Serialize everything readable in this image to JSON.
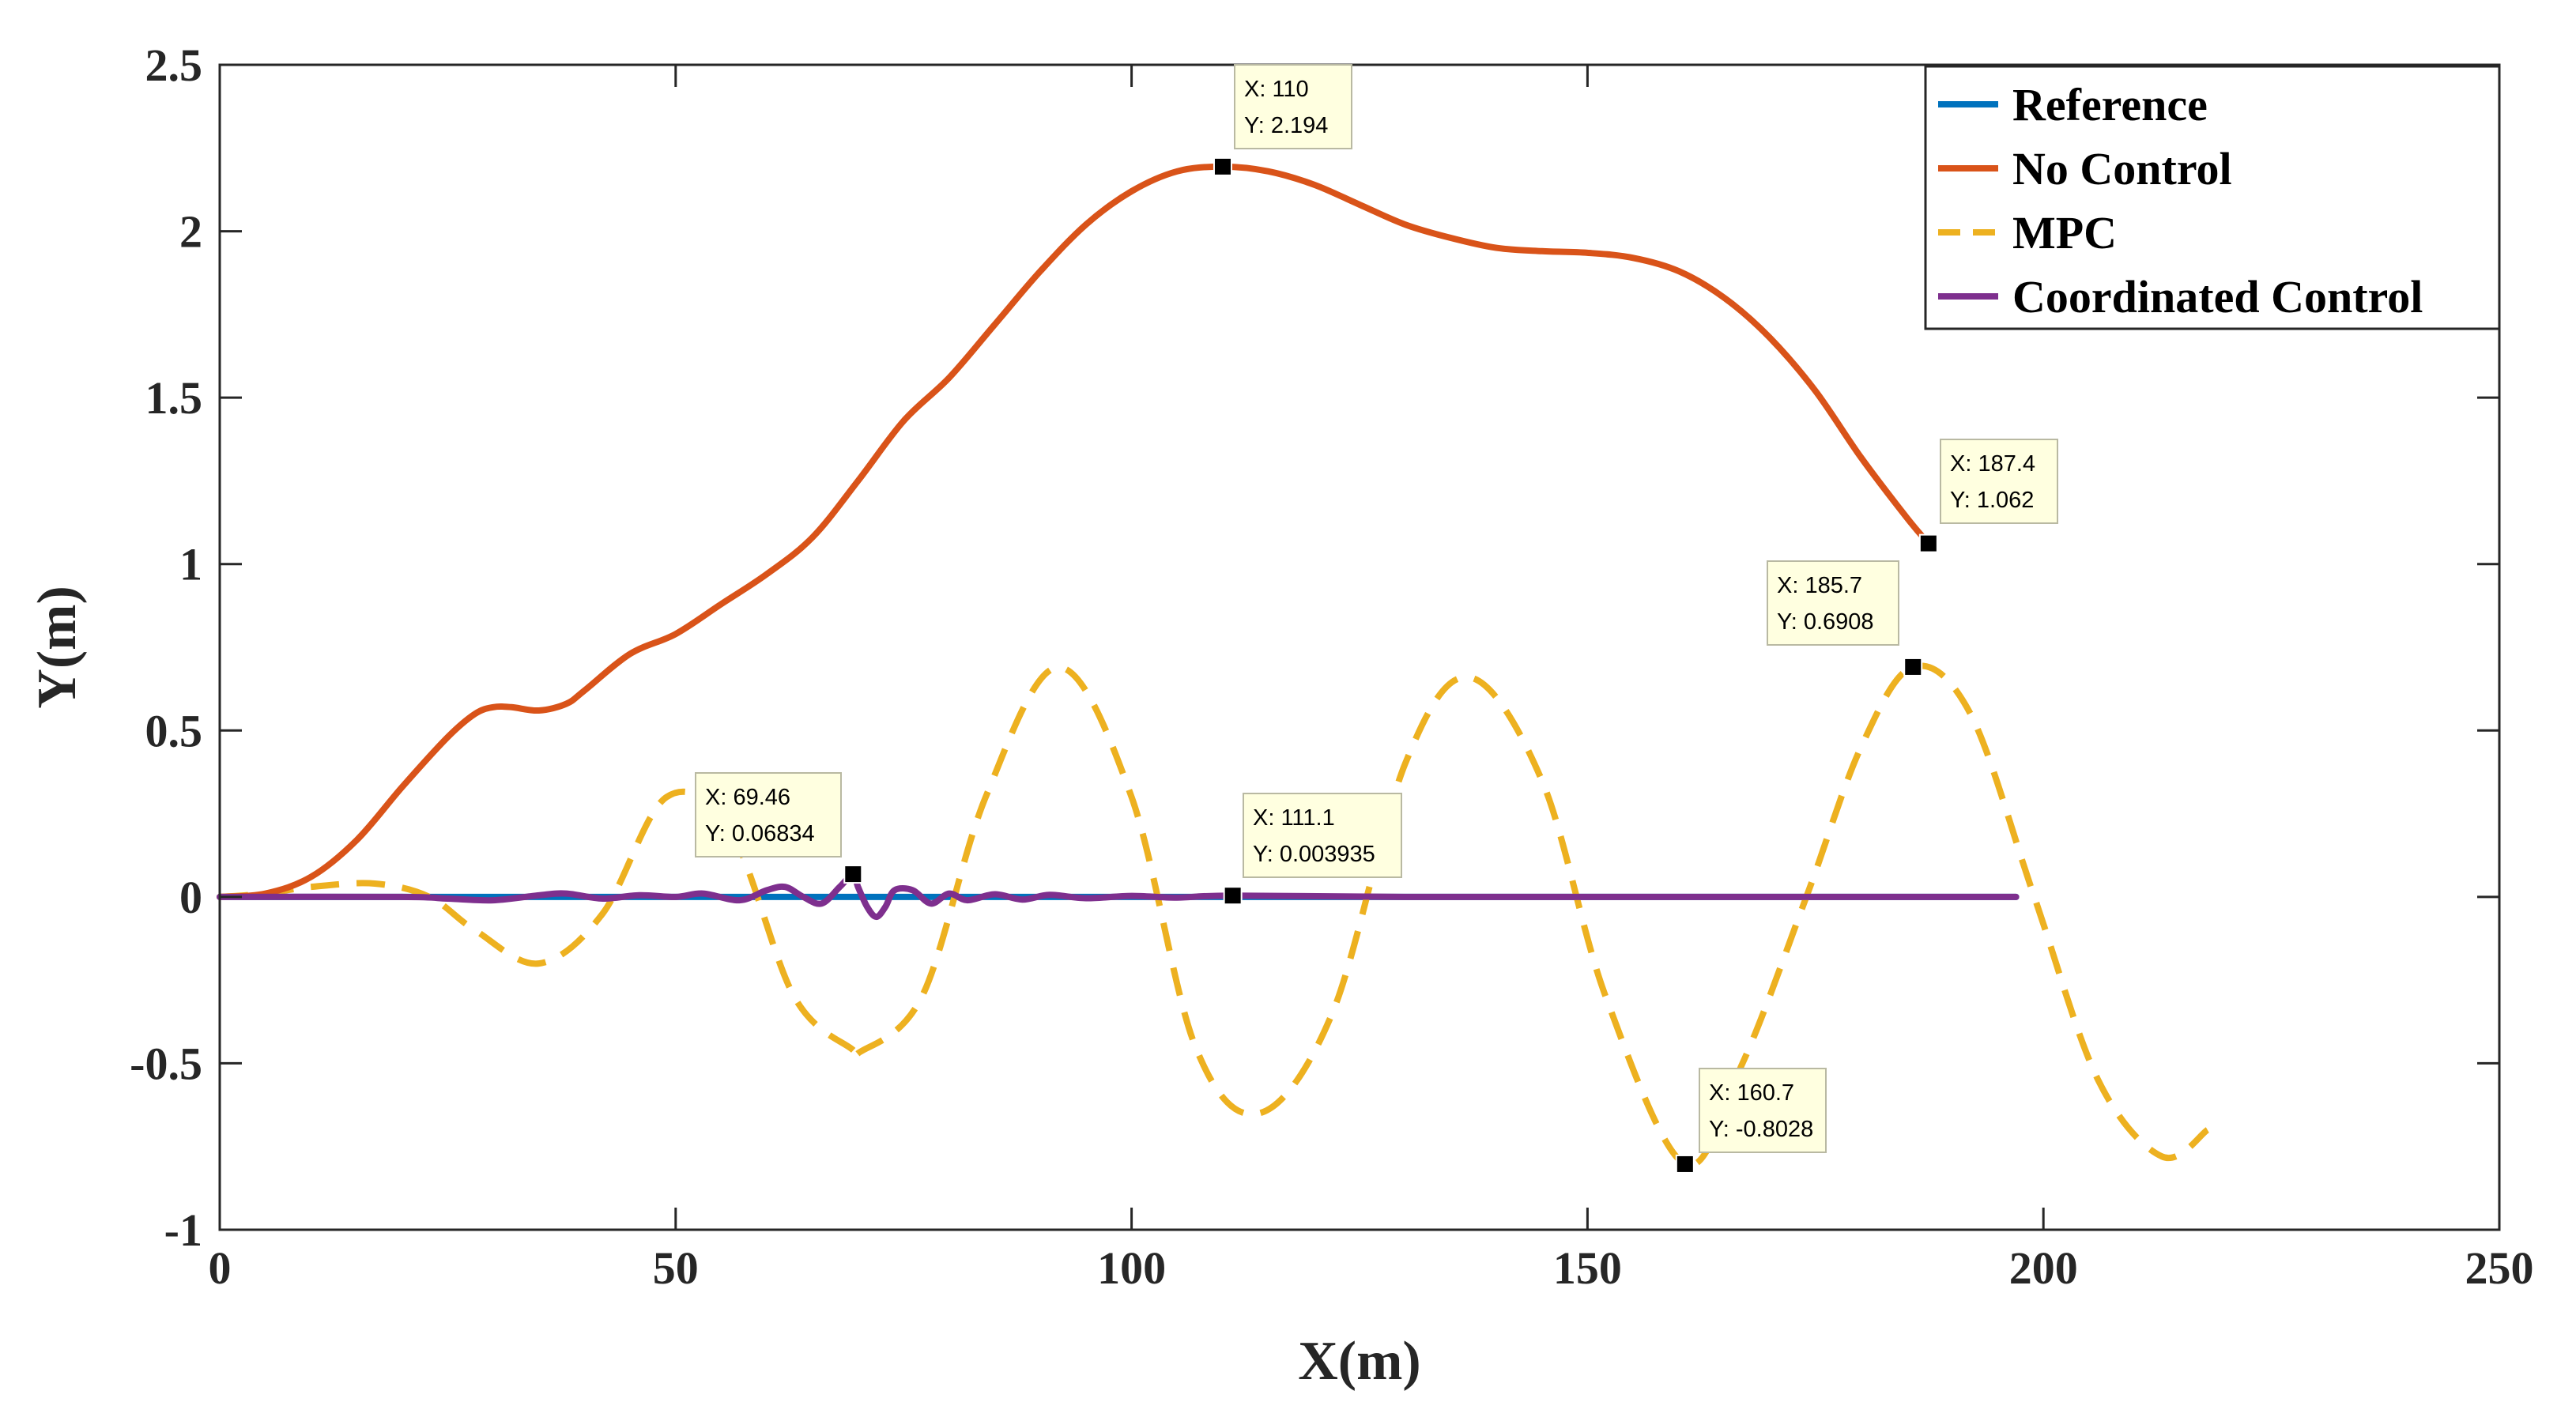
{
  "chart_data": {
    "type": "line",
    "title": "",
    "xlabel": "X(m)",
    "ylabel": "Y(m)",
    "xlim": [
      0,
      250
    ],
    "ylim": [
      -1,
      2.5
    ],
    "xticks": [
      0,
      50,
      100,
      150,
      200,
      250
    ],
    "xtick_labels": [
      "0",
      "50",
      "100",
      "150",
      "200",
      "250"
    ],
    "yticks": [
      2.5,
      2,
      1.5,
      1,
      0.5,
      0,
      -0.5,
      -1
    ],
    "ytick_labels": [
      "2.5",
      "2",
      "1.5",
      "1",
      "0.5",
      "0",
      "-0.5",
      "-1"
    ],
    "grid": false,
    "legend_position": "top-right",
    "series": [
      {
        "name": "Reference",
        "color": "#0072BD",
        "style": "solid",
        "x": [
          0,
          197
        ],
        "y": [
          0,
          0
        ]
      },
      {
        "name": "No Control",
        "color": "#D95319",
        "style": "solid",
        "x": [
          0,
          5,
          10,
          15,
          20,
          25,
          28,
          30,
          32,
          35,
          38,
          40,
          45,
          50,
          55,
          60,
          65,
          70,
          75,
          80,
          85,
          90,
          95,
          100,
          105,
          110,
          115,
          120,
          125,
          130,
          135,
          140,
          145,
          150,
          155,
          160,
          165,
          170,
          175,
          180,
          185,
          187.4
        ],
        "y": [
          0,
          0.01,
          0.06,
          0.17,
          0.33,
          0.48,
          0.55,
          0.57,
          0.57,
          0.56,
          0.58,
          0.62,
          0.73,
          0.79,
          0.88,
          0.97,
          1.08,
          1.25,
          1.43,
          1.56,
          1.72,
          1.88,
          2.02,
          2.12,
          2.18,
          2.194,
          2.18,
          2.14,
          2.08,
          2.02,
          1.98,
          1.95,
          1.94,
          1.935,
          1.92,
          1.88,
          1.8,
          1.68,
          1.52,
          1.32,
          1.14,
          1.062
        ]
      },
      {
        "name": "MPC",
        "color": "#EDB120",
        "style": "dashed",
        "x": [
          0,
          5,
          10,
          17,
          23,
          28,
          35,
          42,
          49,
          56,
          63,
          69.46,
          70,
          77,
          84,
          92,
          100,
          107,
          114,
          122,
          130,
          137,
          145,
          152,
          160.7,
          167,
          174,
          180,
          185.7,
          192,
          199,
          206,
          213,
          218
        ],
        "y": [
          0,
          0.01,
          0.03,
          0.04,
          0.0,
          -0.1,
          -0.2,
          -0.05,
          0.3,
          0.2,
          -0.3,
          -0.46,
          -0.47,
          -0.3,
          0.3,
          0.69,
          0.3,
          -0.45,
          -0.65,
          -0.35,
          0.4,
          0.66,
          0.35,
          -0.3,
          -0.8028,
          -0.5,
          0.0,
          0.45,
          0.6908,
          0.55,
          0.0,
          -0.55,
          -0.78,
          -0.7
        ]
      },
      {
        "name": "Coordinated Control",
        "color": "#7E2F8E",
        "style": "solid",
        "x": [
          0,
          20,
          25,
          30,
          35,
          38,
          42,
          46,
          50,
          53,
          57,
          60,
          62,
          64,
          66,
          68,
          69.46,
          70,
          71,
          72,
          73,
          74,
          76,
          78,
          80,
          82,
          85,
          88,
          91,
          95,
          100,
          105,
          111.1,
          130,
          160,
          197
        ],
        "y": [
          0,
          0,
          -0.005,
          -0.01,
          0.005,
          0.01,
          -0.005,
          0.005,
          0.0,
          0.01,
          -0.01,
          0.02,
          0.03,
          0.0,
          -0.02,
          0.03,
          0.06834,
          0.03,
          -0.03,
          -0.06,
          -0.03,
          0.02,
          0.02,
          -0.02,
          0.01,
          -0.01,
          0.008,
          -0.008,
          0.006,
          -0.004,
          0.003,
          -0.002,
          0.003935,
          0.0,
          0.0,
          0.0
        ]
      }
    ],
    "datatips": [
      {
        "x": 110,
        "y": 2.194,
        "line1": "X: 110",
        "line2": "Y: 2.194"
      },
      {
        "x": 187.4,
        "y": 1.062,
        "line1": "X: 187.4",
        "line2": "Y: 1.062"
      },
      {
        "x": 185.7,
        "y": 0.6908,
        "line1": "X: 185.7",
        "line2": "Y: 0.6908"
      },
      {
        "x": 69.46,
        "y": 0.06834,
        "line1": "X: 69.46",
        "line2": "Y: 0.06834"
      },
      {
        "x": 111.1,
        "y": 0.003935,
        "line1": "X: 111.1",
        "line2": "Y: 0.003935"
      },
      {
        "x": 160.7,
        "y": -0.8028,
        "line1": "X: 160.7",
        "line2": "Y: -0.8028"
      }
    ]
  }
}
